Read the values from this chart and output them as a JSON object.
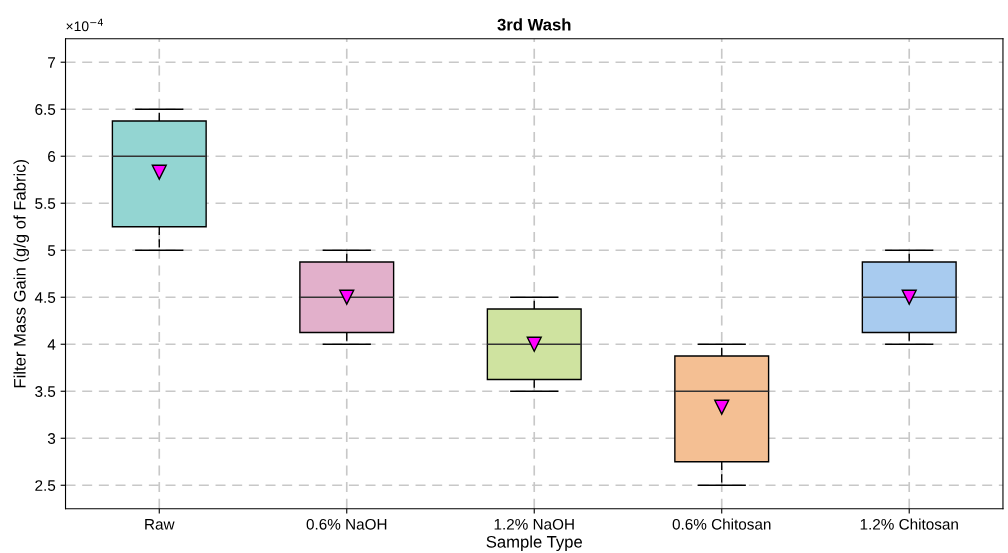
{
  "chart_data": {
    "type": "box",
    "title": "3rd Wash",
    "xlabel": "Sample Type",
    "ylabel": "Filter Mass Gain (g/g of Fabric)",
    "categories": [
      "Raw",
      "0.6% NaOH",
      "1.2% NaOH",
      "0.6% Chitosan",
      "1.2% Chitosan"
    ],
    "colors": [
      "#93d5d2",
      "#e2b0cb",
      "#cfe3a0",
      "#f4bf93",
      "#a8cbef"
    ],
    "boxes": [
      {
        "low": 5,
        "q1": 5.25,
        "median": 6,
        "q3": 6.375,
        "high": 6.5,
        "mean": 5.83
      },
      {
        "low": 4,
        "q1": 4.125,
        "median": 4.5,
        "q3": 4.875,
        "high": 5,
        "mean": 4.5
      },
      {
        "low": 3.5,
        "q1": 3.625,
        "median": 4,
        "q3": 4.375,
        "high": 4.5,
        "mean": 4
      },
      {
        "low": 2.5,
        "q1": 2.75,
        "median": 3.5,
        "q3": 3.875,
        "high": 4,
        "mean": 3.33
      },
      {
        "low": 4,
        "q1": 4.125,
        "median": 4.5,
        "q3": 4.875,
        "high": 5,
        "mean": 4.5
      }
    ],
    "ylim": [
      2.25,
      7.25
    ],
    "yticks": [
      2.5,
      3,
      3.5,
      4,
      4.5,
      5,
      5.5,
      6,
      6.5,
      7
    ],
    "annotations": [
      "×10$^{−4}$"
    ],
    "grid": true,
    "marker": "triangle"
  }
}
